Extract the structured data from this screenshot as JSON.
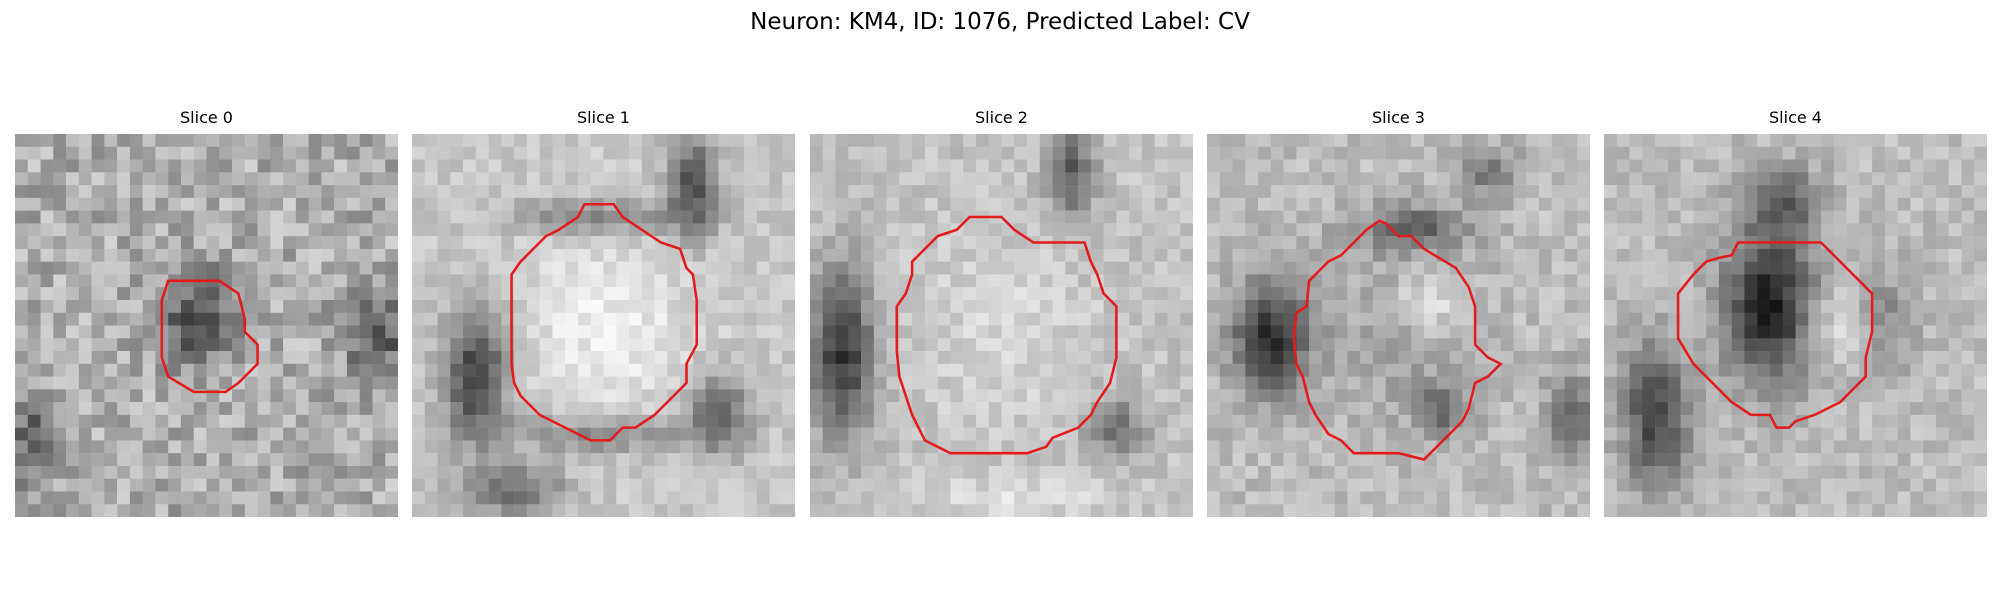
{
  "figure": {
    "title": "Neuron: KM4, ID: 1076, Predicted Label: CV"
  },
  "colors": {
    "background": "#ffffff",
    "contour": "#e41a1c",
    "grayscale_dark": "#000000",
    "grayscale_light": "#ffffff"
  },
  "panels": [
    {
      "title": "Slice 0"
    },
    {
      "title": "Slice 1"
    },
    {
      "title": "Slice 2"
    },
    {
      "title": "Slice 3"
    },
    {
      "title": "Slice 4"
    }
  ]
}
